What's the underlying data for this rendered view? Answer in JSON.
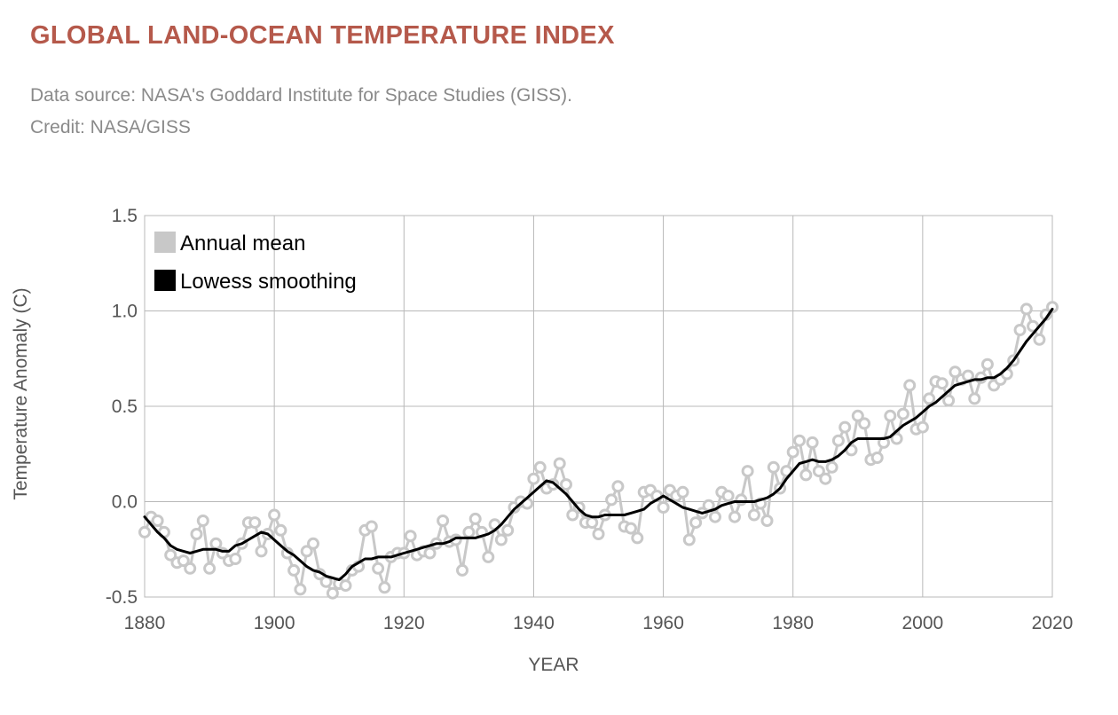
{
  "header": {
    "title": "GLOBAL LAND-OCEAN TEMPERATURE INDEX",
    "source": "Data source: NASA's Goddard Institute for Space Studies (GISS).",
    "credit": "Credit: NASA/GISS"
  },
  "colors": {
    "title": "#b5594b",
    "annual": "#c8c8c8",
    "smooth": "#000000",
    "grid": "#b8b8b8"
  },
  "chart_data": {
    "type": "line",
    "xlabel": "YEAR",
    "ylabel": "Temperature Anomaly (C)",
    "xlim": [
      1880,
      2020
    ],
    "ylim": [
      -0.5,
      1.5
    ],
    "grid": true,
    "legend_position": "top-left",
    "x_ticks": [
      1880,
      1900,
      1920,
      1940,
      1960,
      1980,
      2000,
      2020
    ],
    "y_ticks": [
      -0.5,
      0.0,
      0.5,
      1.0,
      1.5
    ],
    "y_tick_labels": [
      "-0.5",
      "0.0",
      "0.5",
      "1.0",
      "1.5"
    ],
    "x": [
      1880,
      1881,
      1882,
      1883,
      1884,
      1885,
      1886,
      1887,
      1888,
      1889,
      1890,
      1891,
      1892,
      1893,
      1894,
      1895,
      1896,
      1897,
      1898,
      1899,
      1900,
      1901,
      1902,
      1903,
      1904,
      1905,
      1906,
      1907,
      1908,
      1909,
      1910,
      1911,
      1912,
      1913,
      1914,
      1915,
      1916,
      1917,
      1918,
      1919,
      1920,
      1921,
      1922,
      1923,
      1924,
      1925,
      1926,
      1927,
      1928,
      1929,
      1930,
      1931,
      1932,
      1933,
      1934,
      1935,
      1936,
      1937,
      1938,
      1939,
      1940,
      1941,
      1942,
      1943,
      1944,
      1945,
      1946,
      1947,
      1948,
      1949,
      1950,
      1951,
      1952,
      1953,
      1954,
      1955,
      1956,
      1957,
      1958,
      1959,
      1960,
      1961,
      1962,
      1963,
      1964,
      1965,
      1966,
      1967,
      1968,
      1969,
      1970,
      1971,
      1972,
      1973,
      1974,
      1975,
      1976,
      1977,
      1978,
      1979,
      1980,
      1981,
      1982,
      1983,
      1984,
      1985,
      1986,
      1987,
      1988,
      1989,
      1990,
      1991,
      1992,
      1993,
      1994,
      1995,
      1996,
      1997,
      1998,
      1999,
      2000,
      2001,
      2002,
      2003,
      2004,
      2005,
      2006,
      2007,
      2008,
      2009,
      2010,
      2011,
      2012,
      2013,
      2014,
      2015,
      2016,
      2017,
      2018,
      2019,
      2020
    ],
    "series": [
      {
        "name": "Annual mean",
        "values": [
          -0.16,
          -0.08,
          -0.1,
          -0.16,
          -0.28,
          -0.32,
          -0.31,
          -0.35,
          -0.17,
          -0.1,
          -0.35,
          -0.22,
          -0.27,
          -0.31,
          -0.3,
          -0.22,
          -0.11,
          -0.11,
          -0.26,
          -0.17,
          -0.07,
          -0.15,
          -0.27,
          -0.36,
          -0.46,
          -0.26,
          -0.22,
          -0.38,
          -0.42,
          -0.48,
          -0.43,
          -0.44,
          -0.36,
          -0.34,
          -0.15,
          -0.13,
          -0.35,
          -0.45,
          -0.29,
          -0.27,
          -0.27,
          -0.18,
          -0.28,
          -0.26,
          -0.27,
          -0.22,
          -0.1,
          -0.21,
          -0.2,
          -0.36,
          -0.16,
          -0.09,
          -0.16,
          -0.29,
          -0.12,
          -0.2,
          -0.15,
          -0.03,
          0.0,
          -0.01,
          0.12,
          0.18,
          0.07,
          0.09,
          0.2,
          0.09,
          -0.07,
          -0.03,
          -0.11,
          -0.11,
          -0.17,
          -0.07,
          0.01,
          0.08,
          -0.13,
          -0.14,
          -0.19,
          0.05,
          0.06,
          0.03,
          -0.03,
          0.06,
          0.03,
          0.05,
          -0.2,
          -0.11,
          -0.06,
          -0.02,
          -0.08,
          0.05,
          0.03,
          -0.08,
          0.01,
          0.16,
          -0.07,
          -0.01,
          -0.1,
          0.18,
          0.07,
          0.16,
          0.26,
          0.32,
          0.14,
          0.31,
          0.16,
          0.12,
          0.18,
          0.32,
          0.39,
          0.27,
          0.45,
          0.41,
          0.22,
          0.23,
          0.31,
          0.45,
          0.33,
          0.46,
          0.61,
          0.38,
          0.39,
          0.54,
          0.63,
          0.62,
          0.53,
          0.68,
          0.64,
          0.66,
          0.54,
          0.65,
          0.72,
          0.61,
          0.64,
          0.67,
          0.74,
          0.9,
          1.01,
          0.92,
          0.85,
          0.98,
          1.02
        ]
      },
      {
        "name": "Lowess smoothing",
        "values": [
          -0.08,
          -0.12,
          -0.16,
          -0.19,
          -0.23,
          -0.25,
          -0.26,
          -0.27,
          -0.26,
          -0.25,
          -0.25,
          -0.25,
          -0.26,
          -0.26,
          -0.23,
          -0.22,
          -0.2,
          -0.18,
          -0.16,
          -0.17,
          -0.2,
          -0.23,
          -0.26,
          -0.28,
          -0.31,
          -0.34,
          -0.36,
          -0.37,
          -0.39,
          -0.4,
          -0.41,
          -0.38,
          -0.34,
          -0.32,
          -0.3,
          -0.3,
          -0.29,
          -0.29,
          -0.29,
          -0.28,
          -0.27,
          -0.26,
          -0.25,
          -0.24,
          -0.23,
          -0.22,
          -0.22,
          -0.21,
          -0.19,
          -0.19,
          -0.19,
          -0.19,
          -0.18,
          -0.17,
          -0.15,
          -0.12,
          -0.08,
          -0.04,
          -0.01,
          0.02,
          0.05,
          0.08,
          0.11,
          0.1,
          0.07,
          0.04,
          0.0,
          -0.04,
          -0.07,
          -0.08,
          -0.08,
          -0.07,
          -0.07,
          -0.07,
          -0.07,
          -0.06,
          -0.05,
          -0.04,
          -0.01,
          0.01,
          0.03,
          0.01,
          -0.01,
          -0.03,
          -0.04,
          -0.05,
          -0.06,
          -0.05,
          -0.04,
          -0.02,
          -0.01,
          0.0,
          0.0,
          0.0,
          0.0,
          0.01,
          0.02,
          0.04,
          0.07,
          0.12,
          0.16,
          0.2,
          0.21,
          0.22,
          0.21,
          0.21,
          0.22,
          0.24,
          0.27,
          0.31,
          0.33,
          0.33,
          0.33,
          0.33,
          0.33,
          0.34,
          0.37,
          0.4,
          0.42,
          0.44,
          0.47,
          0.5,
          0.52,
          0.55,
          0.58,
          0.61,
          0.62,
          0.63,
          0.64,
          0.64,
          0.65,
          0.65,
          0.67,
          0.7,
          0.74,
          0.79,
          0.84,
          0.88,
          0.92,
          0.96,
          1.01
        ]
      }
    ]
  }
}
